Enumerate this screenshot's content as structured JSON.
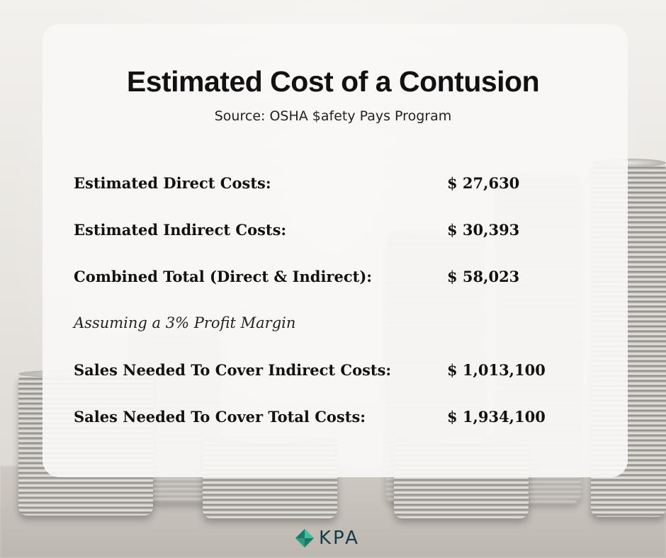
{
  "header": {
    "title": "Estimated Cost of a Contusion",
    "source": "Source: OSHA $afety Pays Program"
  },
  "rows": [
    {
      "label": "Estimated Direct Costs:",
      "value": "$ 27,630"
    },
    {
      "label": "Estimated Indirect Costs:",
      "value": "$ 30,393"
    },
    {
      "label": "Combined Total (Direct & Indirect):",
      "value": "$ 58,023"
    }
  ],
  "assumption": "Assuming a 3% Profit Margin",
  "sales_rows": [
    {
      "label": "Sales Needed To Cover Indirect Costs:",
      "value": "$ 1,013,100"
    },
    {
      "label": "Sales Needed To Cover Total Costs:",
      "value": "$ 1,934,100"
    }
  ],
  "logo": {
    "text": "KPA",
    "colors": {
      "mark_light": "#3fbf9a",
      "mark_dark": "#1a7a6a",
      "text": "#133b4a"
    }
  },
  "background": {
    "description_icon": "coin-stacks-image"
  }
}
